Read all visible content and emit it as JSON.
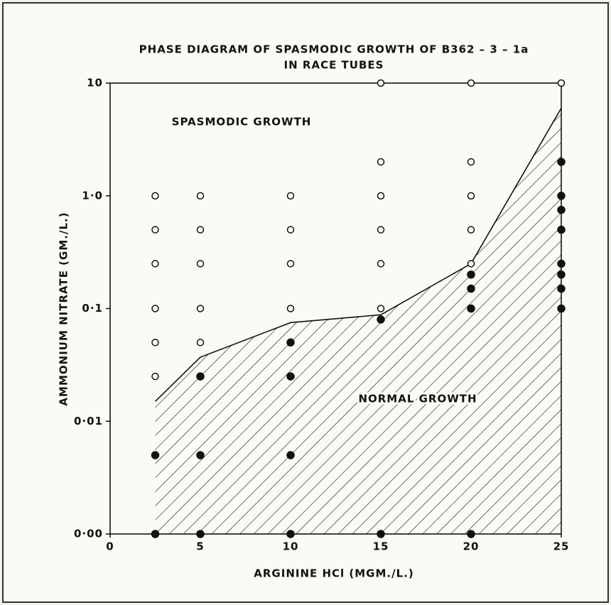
{
  "chart_data": {
    "type": "scatter",
    "title": "PHASE DIAGRAM OF SPASMODIC GROWTH OF B362 – 3 – 1a",
    "subtitle": "IN RACE TUBES",
    "x_label": "ARGININE HCl (MGM./L.)",
    "y_label": "AMMONIUM NITRATE (GM./L.)",
    "xlim": [
      0,
      25
    ],
    "xticks": [
      0,
      5,
      10,
      15,
      20,
      25
    ],
    "ylim": [
      0.001,
      10
    ],
    "log_y": true,
    "yticks": [
      {
        "value": 0.001,
        "label": "0·00"
      },
      {
        "value": 0.01,
        "label": "0·01"
      },
      {
        "value": 0.1,
        "label": "0·1"
      },
      {
        "value": 1,
        "label": "1·0"
      },
      {
        "value": 10,
        "label": "10"
      }
    ],
    "series": [
      {
        "name": "SPASMODIC GROWTH",
        "color": "#111",
        "filled": false,
        "x": [
          2.5,
          2.5,
          2.5,
          2.5,
          2.5,
          2.5,
          5,
          5,
          5,
          5,
          5,
          10,
          10,
          10,
          10,
          15,
          15,
          15,
          15,
          15,
          15,
          20,
          20,
          20,
          20,
          20,
          25
        ],
        "values": [
          1,
          0.5,
          0.25,
          0.1,
          0.05,
          0.025,
          1,
          0.5,
          0.25,
          0.1,
          0.05,
          1,
          0.5,
          0.25,
          0.1,
          10,
          2,
          1,
          0.5,
          0.25,
          0.1,
          10,
          2,
          1,
          0.5,
          0.25,
          10
        ]
      },
      {
        "name": "NORMAL GROWTH",
        "color": "#111",
        "filled": true,
        "x": [
          2.5,
          2.5,
          5,
          5,
          5,
          10,
          10,
          10,
          10,
          15,
          15,
          20,
          20,
          20,
          20,
          25,
          25,
          25,
          25,
          25,
          25,
          25,
          25
        ],
        "values": [
          0.005,
          0.001,
          0.025,
          0.005,
          0.001,
          0.05,
          0.025,
          0.005,
          0.001,
          0.08,
          0.001,
          0.2,
          0.15,
          0.1,
          0.001,
          2,
          1,
          0.75,
          0.5,
          0.25,
          0.2,
          0.15,
          0.1
        ]
      }
    ],
    "boundary": {
      "x": [
        2.5,
        5,
        10,
        15,
        20,
        25
      ],
      "y": [
        0.015,
        0.037,
        0.075,
        0.088,
        0.25,
        6
      ]
    }
  }
}
